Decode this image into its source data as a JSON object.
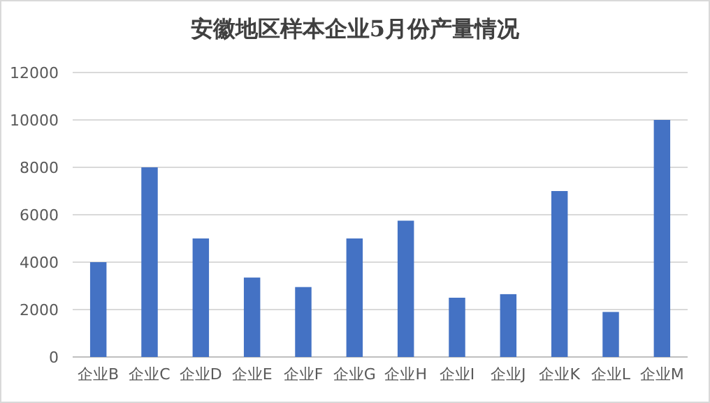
{
  "chart_data": {
    "type": "bar",
    "title": "安徽地区样本企业5月份产量情况",
    "categories": [
      "企业B",
      "企业C",
      "企业D",
      "企业E",
      "企业F",
      "企业G",
      "企业H",
      "企业I",
      "企业J",
      "企业K",
      "企业L",
      "企业M"
    ],
    "values": [
      4000,
      8000,
      5000,
      3350,
      2950,
      5000,
      5750,
      2500,
      2650,
      7000,
      1900,
      10000
    ],
    "color": "#4472c4",
    "ylim": [
      0,
      12000
    ],
    "yticks": [
      0,
      2000,
      4000,
      6000,
      8000,
      10000,
      12000
    ],
    "grid": "y"
  }
}
